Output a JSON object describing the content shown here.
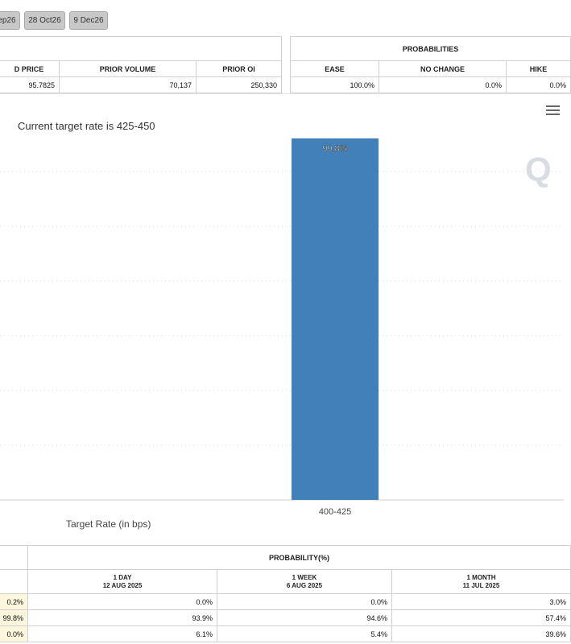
{
  "date_tabs": [
    "ep26",
    "28 Oct26",
    "9 Dec26"
  ],
  "futures_table": {
    "headers": [
      "D PRICE",
      "PRIOR VOLUME",
      "PRIOR OI"
    ],
    "values": [
      "95.7825",
      "70,137",
      "250,330"
    ]
  },
  "prob_table": {
    "title": "PROBABILITIES",
    "headers": [
      "EASE",
      "NO CHANGE",
      "HIKE"
    ],
    "values": [
      "100.0%",
      "0.0%",
      "0.0%"
    ]
  },
  "chart": {
    "current_target_text": "Current target rate is 425-450",
    "xlabel": "Target Rate (in bps)",
    "menu_icon": "hamburger-menu-icon",
    "watermark_icon": "q-logo-watermark",
    "bar_color": "#4180b8"
  },
  "chart_data": {
    "type": "bar",
    "categories": [
      "400-425"
    ],
    "values": [
      99.8
    ],
    "data_labels": [
      "99.8%"
    ],
    "ylim": [
      0,
      100
    ],
    "grid": true
  },
  "history_table": {
    "title": "PROBABILITY(%)",
    "columns": [
      {
        "label": "1 DAY",
        "date": "12 AUG 2025"
      },
      {
        "label": "1 WEEK",
        "date": "6 AUG 2025"
      },
      {
        "label": "1 MONTH",
        "date": "11 JUL 2025"
      }
    ],
    "rows": [
      {
        "now": "0.2%",
        "day": "0.0%",
        "week": "0.0%",
        "month": "3.0%"
      },
      {
        "now": "99.8%",
        "day": "93.9%",
        "week": "94.6%",
        "month": "57.4%"
      },
      {
        "now": "0.0%",
        "day": "6.1%",
        "week": "5.4%",
        "month": "39.6%"
      }
    ]
  }
}
